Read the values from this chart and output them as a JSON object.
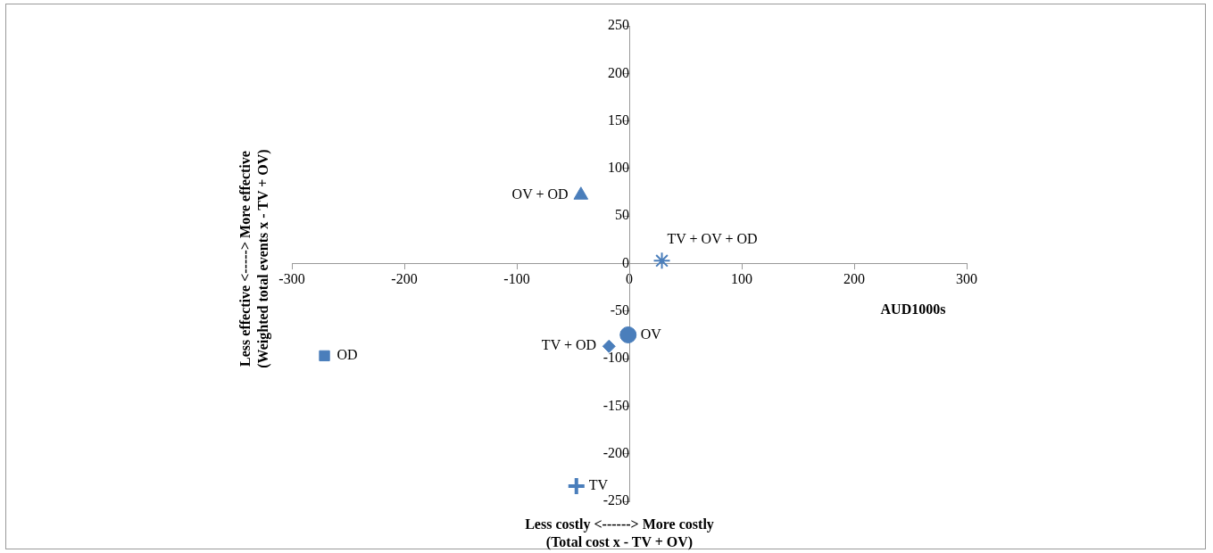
{
  "chart_data": {
    "type": "scatter",
    "xlabel": "Less costly <------> More costly\n(Total cost x - TV + OV)",
    "ylabel": "Less effective <-----> More effective\n(Weighted total events x - TV + OV)",
    "annotations": [
      "AUD1000s"
    ],
    "xlim": [
      -300,
      300
    ],
    "xticks": [
      -300,
      -200,
      -100,
      0,
      100,
      200,
      300
    ],
    "ylim": [
      -250,
      250
    ],
    "yticks": [
      -250,
      -200,
      -150,
      -100,
      -50,
      0,
      50,
      100,
      150,
      200,
      250
    ],
    "grid": false,
    "legend": false,
    "series": [
      {
        "name": "OV + OD",
        "color": "#4a7ebb",
        "marker": "triangle",
        "x": [
          -43
        ],
        "values": [
          72
        ]
      },
      {
        "name": "TV + OV + OD",
        "color": "#4a7ebb",
        "x": [
          29
        ],
        "values": [
          3
        ]
      },
      {
        "name": "OV",
        "color": "#4a7ebb",
        "marker": "circle",
        "x": [
          -1
        ],
        "values": [
          -75
        ]
      },
      {
        "name": "TV + OD",
        "color": "#4a7ebb",
        "marker": "diamond",
        "x": [
          -18
        ],
        "values": [
          -87
        ]
      },
      {
        "name": "OD",
        "color": "#4a7ebb",
        "marker": "square",
        "x": [
          -271
        ],
        "values": [
          -97
        ]
      },
      {
        "name": "TV",
        "color": "#4a7ebb",
        "marker": "cross",
        "x": [
          -47
        ],
        "values": [
          -234
        ]
      }
    ]
  }
}
